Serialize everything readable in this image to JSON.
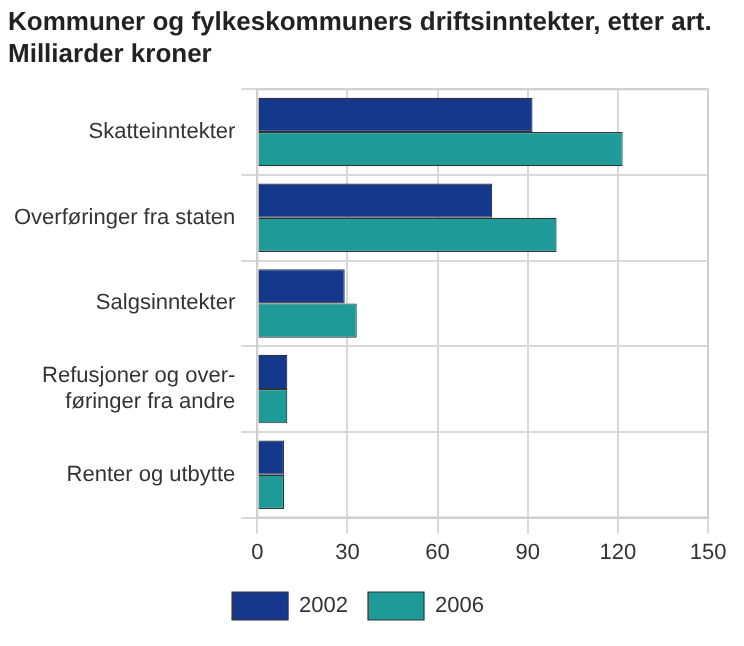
{
  "chart_data": {
    "type": "bar",
    "orientation": "horizontal",
    "title": "Kommuner og fylkeskommuners driftsinntekter, etter art.\nMilliarder kroner",
    "categories": [
      "Skatteinntekter",
      "Overføringer fra staten",
      "Salgsinntekter",
      "Refusjoner og over-\nføringer fra andre",
      "Renter og utbytte"
    ],
    "series": [
      {
        "name": "2002",
        "color": "#15388c",
        "values": [
          91.6,
          78.2,
          29.1,
          10,
          8.9
        ]
      },
      {
        "name": "2006",
        "color": "#1e9b98",
        "values": [
          121.6,
          99.6,
          33.1,
          10,
          8.9
        ]
      }
    ],
    "xlim": [
      0,
      150
    ],
    "xticks": [
      0,
      30,
      60,
      90,
      120,
      150
    ],
    "grid": true,
    "legend": "bottom"
  }
}
